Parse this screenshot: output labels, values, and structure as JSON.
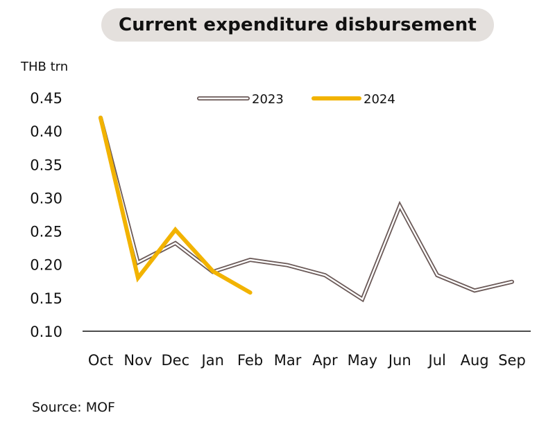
{
  "chart_data": {
    "type": "line",
    "title": "Current expenditure disbursement",
    "ylabel": "THB trn",
    "xlabel": "",
    "source": "Source: MOF",
    "categories": [
      "Oct",
      "Nov",
      "Dec",
      "Jan",
      "Feb",
      "Mar",
      "Apr",
      "May",
      "Jun",
      "Jul",
      "Aug",
      "Sep"
    ],
    "ylim": [
      0.1,
      0.45
    ],
    "yticks": [
      "0.10",
      "0.15",
      "0.20",
      "0.25",
      "0.30",
      "0.35",
      "0.40",
      "0.45"
    ],
    "ytick_values": [
      0.1,
      0.15,
      0.2,
      0.25,
      0.3,
      0.35,
      0.4,
      0.45
    ],
    "grid": false,
    "legend": "top-center",
    "series": [
      {
        "name": "2023",
        "color": "#6b5a58",
        "style": "double-outline",
        "values": [
          0.42,
          0.203,
          0.232,
          0.189,
          0.207,
          0.199,
          0.184,
          0.148,
          0.288,
          0.184,
          0.161,
          0.174
        ]
      },
      {
        "name": "2024",
        "color": "#f2b300",
        "style": "solid",
        "values": [
          0.42,
          0.18,
          0.252,
          0.19,
          0.158,
          null,
          null,
          null,
          null,
          null,
          null,
          null
        ]
      }
    ]
  }
}
